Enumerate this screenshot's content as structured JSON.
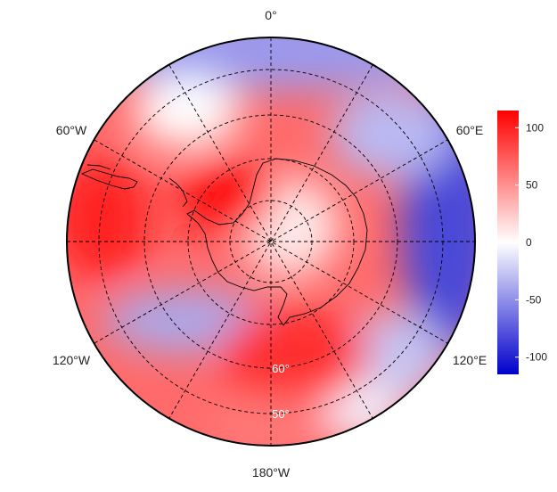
{
  "map": {
    "projection": "south-polar stereographic",
    "longitude_labels": {
      "top": "0°",
      "upper_left": "60°W",
      "upper_right": "60°E",
      "lower_left": "120°W",
      "lower_right": "120°E",
      "bottom": "180°W"
    },
    "latitude_labels": {
      "inner": "60°",
      "outer": "50°"
    },
    "grid": "dashed meridians every 30° and parallels every 10°",
    "coastline_color": "#000000"
  },
  "colorbar": {
    "ticks": [
      "100",
      "50",
      "0",
      "-50",
      "-100"
    ],
    "tick_values": [
      100,
      50,
      0,
      -50,
      -100
    ],
    "range": [
      -115,
      115
    ],
    "colors": {
      "low": "#0000cc",
      "mid": "#ffffff",
      "high": "#ff0000"
    }
  },
  "field_pattern": {
    "description_values": [
      {
        "region": "Antarctic Peninsula / Amundsen Sea",
        "value": 100
      },
      {
        "region": "East Antarctica interior",
        "value": 70
      },
      {
        "region": "Southern Pacific (180°)",
        "value": 80
      },
      {
        "region": "Indian Ocean sector 60°E–90°E",
        "value": -80
      },
      {
        "region": "Southern Atlantic near 0°",
        "value": -40
      },
      {
        "region": "Ross Sea / 150°W band",
        "value": -35
      }
    ]
  }
}
